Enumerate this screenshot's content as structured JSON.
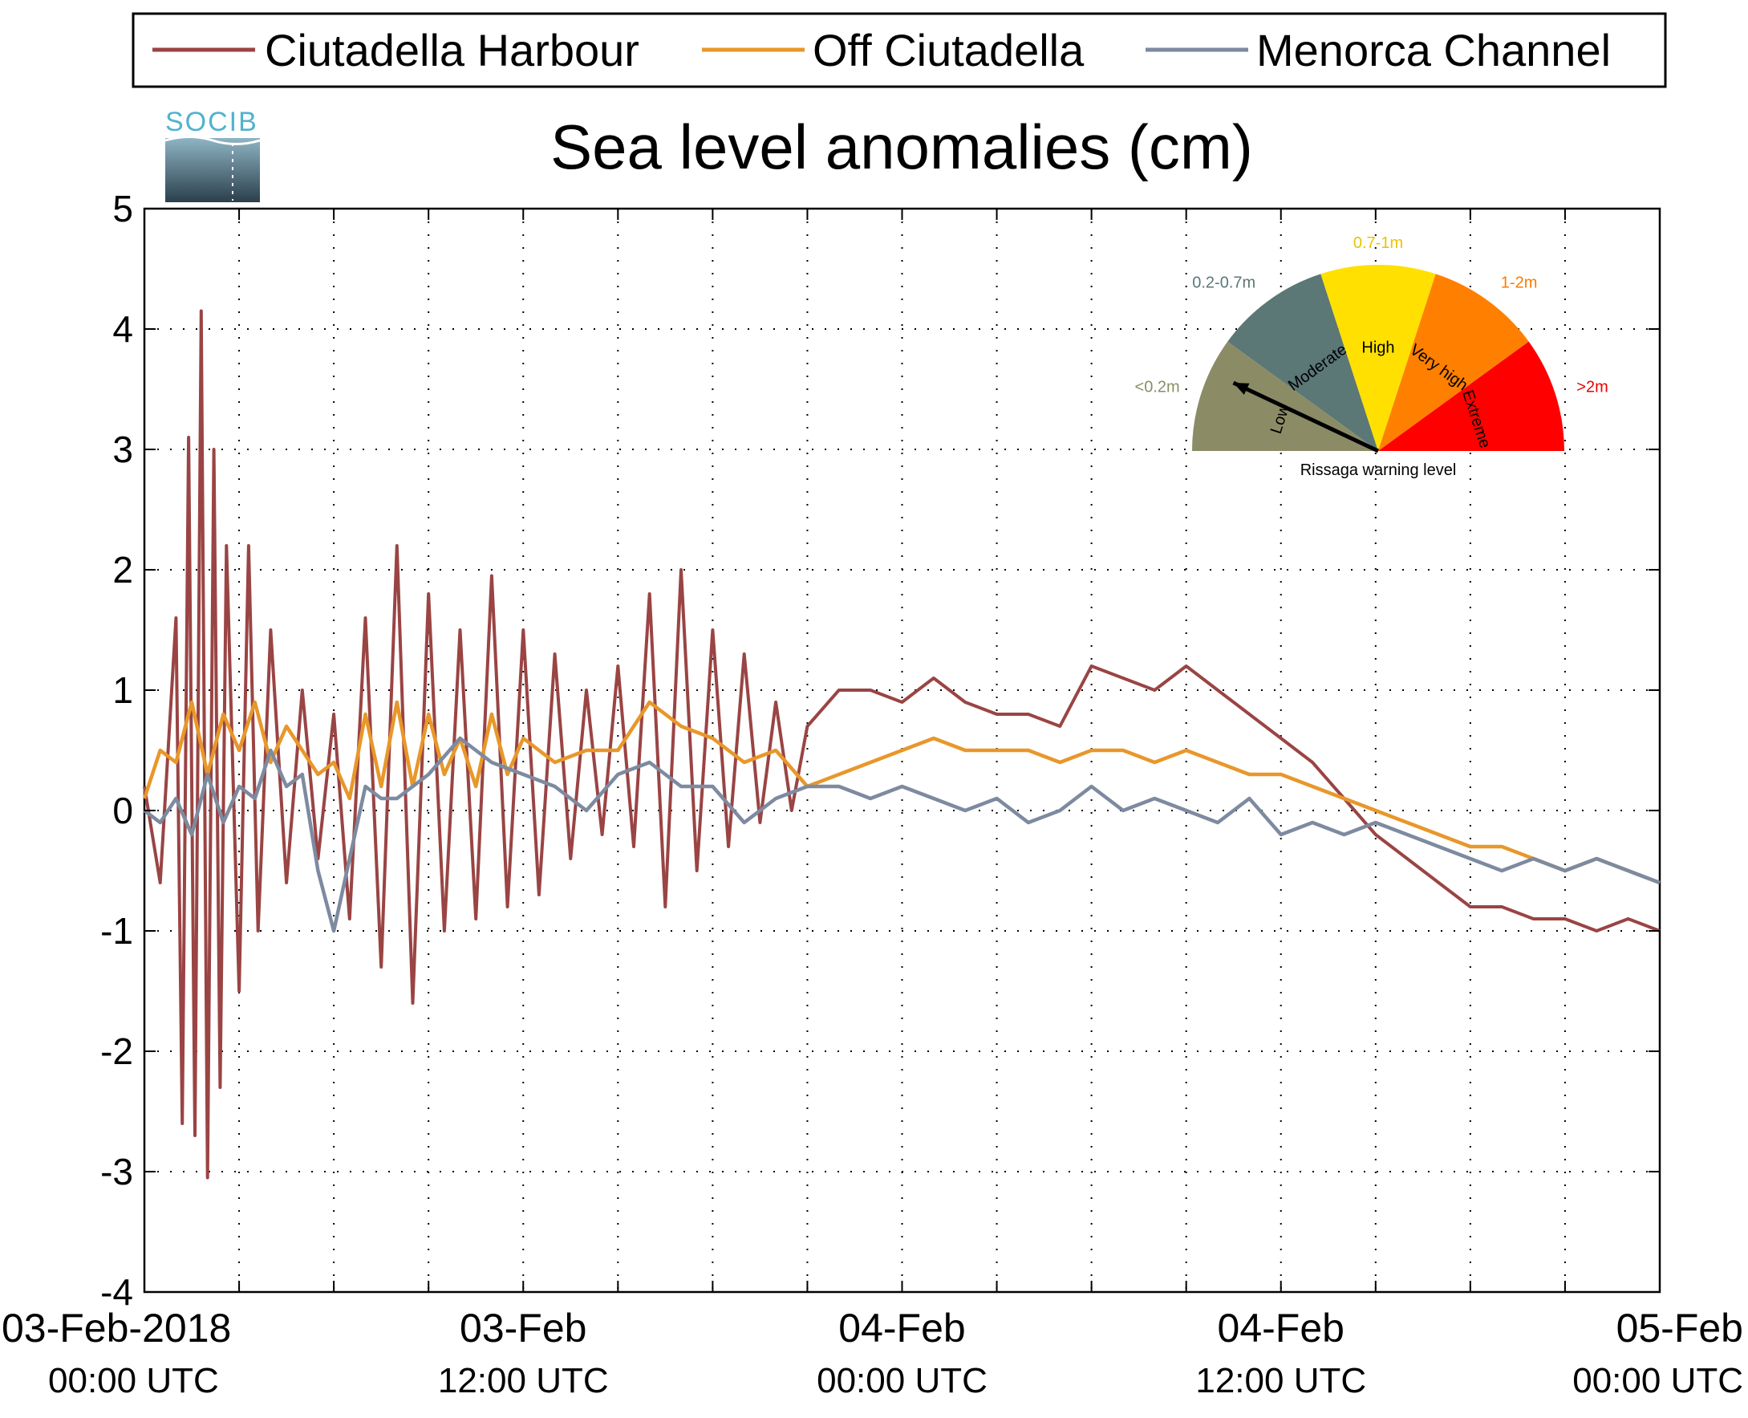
{
  "chart_data": {
    "type": "line",
    "title": "Sea level anomalies (cm)",
    "xlabel": "",
    "ylabel": "",
    "ylim": [
      -4,
      5
    ],
    "yticks": [
      5,
      4,
      3,
      2,
      1,
      0,
      -1,
      -2,
      -3,
      -4
    ],
    "xlim_hours": [
      0,
      48
    ],
    "xtick_labels": [
      {
        "hour": 0,
        "line1": "03-Feb-2018",
        "line2": "00:00 UTC"
      },
      {
        "hour": 12,
        "line1": "03-Feb",
        "line2": "12:00 UTC"
      },
      {
        "hour": 24,
        "line1": "04-Feb",
        "line2": "00:00 UTC"
      },
      {
        "hour": 36,
        "line1": "04-Feb",
        "line2": "12:00 UTC"
      },
      {
        "hour": 48,
        "line1": "05-Feb",
        "line2": "00:00 UTC"
      }
    ],
    "grid": true,
    "legend_position": "top",
    "series": [
      {
        "name": "Ciutadella Harbour",
        "color": "#9a4444",
        "x": [
          0,
          0.5,
          1,
          1.2,
          1.4,
          1.6,
          1.8,
          2,
          2.2,
          2.4,
          2.6,
          3,
          3.3,
          3.6,
          4,
          4.5,
          5,
          5.5,
          6,
          6.5,
          7,
          7.5,
          8,
          8.5,
          9,
          9.5,
          10,
          10.5,
          11,
          11.5,
          12,
          12.5,
          13,
          13.5,
          14,
          14.5,
          15,
          15.5,
          16,
          16.5,
          17,
          17.5,
          18,
          18.5,
          19,
          19.5,
          20,
          20.5,
          21,
          22,
          23,
          24,
          25,
          26,
          27,
          28,
          29,
          30,
          31,
          32,
          33,
          34,
          35,
          36,
          37,
          38,
          39,
          40,
          41,
          42,
          43,
          44,
          45,
          46,
          47,
          48
        ],
        "y": [
          0.2,
          -0.6,
          1.6,
          -2.6,
          3.1,
          -2.7,
          4.15,
          -3.05,
          3.0,
          -2.3,
          2.2,
          -1.5,
          2.2,
          -1.0,
          1.5,
          -0.6,
          1.0,
          -0.4,
          0.8,
          -0.9,
          1.6,
          -1.3,
          2.2,
          -1.6,
          1.8,
          -1.0,
          1.5,
          -0.9,
          1.95,
          -0.8,
          1.5,
          -0.7,
          1.3,
          -0.4,
          1.0,
          -0.2,
          1.2,
          -0.3,
          1.8,
          -0.8,
          2.0,
          -0.5,
          1.5,
          -0.3,
          1.3,
          -0.1,
          0.9,
          0.0,
          0.7,
          1.0,
          1.0,
          0.9,
          1.1,
          0.9,
          0.8,
          0.8,
          0.7,
          1.2,
          1.1,
          1.0,
          1.2,
          1.0,
          0.8,
          0.6,
          0.4,
          0.1,
          -0.2,
          -0.4,
          -0.6,
          -0.8,
          -0.8,
          -0.9,
          -0.9,
          -1.0,
          -0.9,
          -1.0
        ]
      },
      {
        "name": "Off Ciutadella",
        "color": "#e8972a",
        "x": [
          0,
          0.5,
          1,
          1.5,
          2,
          2.5,
          3,
          3.5,
          4,
          4.5,
          5,
          5.5,
          6,
          6.5,
          7,
          7.5,
          8,
          8.5,
          9,
          9.5,
          10,
          10.5,
          11,
          11.5,
          12,
          13,
          14,
          15,
          16,
          17,
          18,
          19,
          20,
          21,
          22,
          23,
          24,
          25,
          26,
          27,
          28,
          29,
          30,
          31,
          32,
          33,
          34,
          35,
          36,
          37,
          38,
          39,
          40,
          41,
          42,
          43,
          44,
          45,
          46,
          47,
          48
        ],
        "y": [
          0.1,
          0.5,
          0.4,
          0.9,
          0.3,
          0.8,
          0.5,
          0.9,
          0.4,
          0.7,
          0.5,
          0.3,
          0.4,
          0.1,
          0.8,
          0.2,
          0.9,
          0.2,
          0.8,
          0.3,
          0.6,
          0.2,
          0.8,
          0.3,
          0.6,
          0.4,
          0.5,
          0.5,
          0.9,
          0.7,
          0.6,
          0.4,
          0.5,
          0.2,
          0.3,
          0.4,
          0.5,
          0.6,
          0.5,
          0.5,
          0.5,
          0.4,
          0.5,
          0.5,
          0.4,
          0.5,
          0.4,
          0.3,
          0.3,
          0.2,
          0.1,
          0.0,
          -0.1,
          -0.2,
          -0.3,
          -0.3,
          -0.4,
          -0.5,
          -0.4,
          -0.5,
          -0.6
        ]
      },
      {
        "name": "Menorca Channel",
        "color": "#7d8aa0",
        "x": [
          0,
          0.5,
          1,
          1.5,
          2,
          2.5,
          3,
          3.5,
          4,
          4.5,
          5,
          5.5,
          6,
          6.5,
          7,
          7.5,
          8,
          9,
          10,
          11,
          12,
          13,
          14,
          15,
          16,
          17,
          18,
          19,
          20,
          21,
          22,
          23,
          24,
          25,
          26,
          27,
          28,
          29,
          30,
          31,
          32,
          33,
          34,
          35,
          36,
          37,
          38,
          39,
          40,
          41,
          42,
          43,
          44,
          45,
          46,
          47,
          48
        ],
        "y": [
          0.0,
          -0.1,
          0.1,
          -0.2,
          0.3,
          -0.1,
          0.2,
          0.1,
          0.5,
          0.2,
          0.3,
          -0.5,
          -1.0,
          -0.4,
          0.2,
          0.1,
          0.1,
          0.3,
          0.6,
          0.4,
          0.3,
          0.2,
          0.0,
          0.3,
          0.4,
          0.2,
          0.2,
          -0.1,
          0.1,
          0.2,
          0.2,
          0.1,
          0.2,
          0.1,
          0.0,
          0.1,
          -0.1,
          0.0,
          0.2,
          0.0,
          0.1,
          0.0,
          -0.1,
          0.1,
          -0.2,
          -0.1,
          -0.2,
          -0.1,
          -0.2,
          -0.3,
          -0.4,
          -0.5,
          -0.4,
          -0.5,
          -0.4,
          -0.5,
          -0.6
        ]
      }
    ]
  },
  "logo": {
    "text": "SOCIB"
  },
  "gauge": {
    "caption": "Rissaga warning level",
    "pointer_level": "Low",
    "segments": [
      {
        "name": "Low",
        "range": "<0.2m",
        "color": "#8b8c66",
        "range_color": "#8b8c66"
      },
      {
        "name": "Moderate",
        "range": "0.2-0.7m",
        "color": "#5b7776",
        "range_color": "#5b7776"
      },
      {
        "name": "High",
        "range": "0.7-1m",
        "color": "#ffe000",
        "range_color": "#e8c400"
      },
      {
        "name": "Very high",
        "range": "1-2m",
        "color": "#ff8000",
        "range_color": "#ff7a00"
      },
      {
        "name": "Extreme",
        "range": ">2m",
        "color": "#ff0000",
        "range_color": "#ee0000"
      }
    ]
  }
}
